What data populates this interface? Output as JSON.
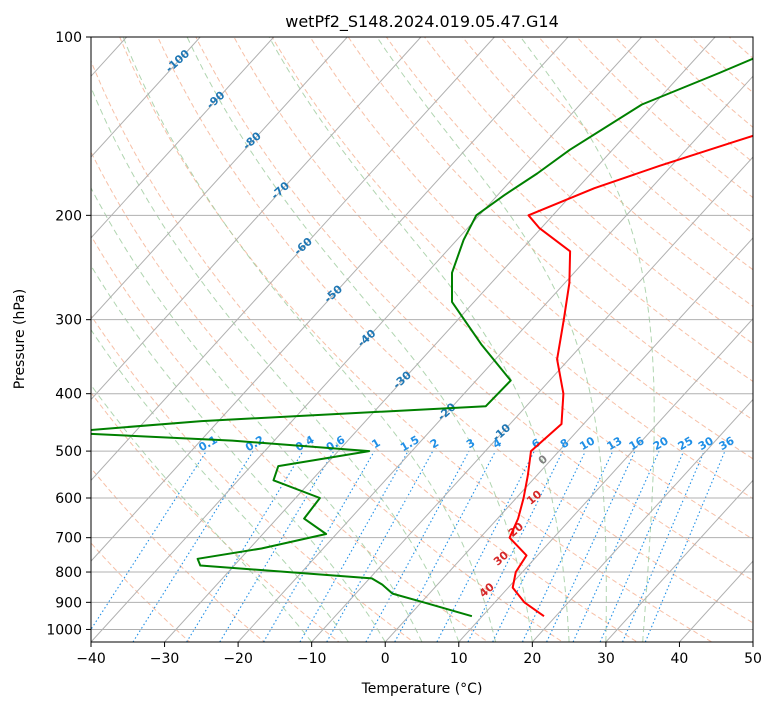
{
  "chart_data": {
    "type": "skew-t",
    "title": "wetPf2_S148.2024.019.05.47.G14",
    "xlabel": "Temperature (°C)",
    "ylabel": "Pressure (hPa)",
    "xlim": [
      -40,
      50
    ],
    "ylim": [
      1050,
      100
    ],
    "y_scale": "log",
    "x_ticks": [
      "−40",
      "−30",
      "−20",
      "−10",
      "0",
      "10",
      "20",
      "30",
      "40",
      "50"
    ],
    "y_ticks": [
      "100",
      "200",
      "300",
      "400",
      "500",
      "600",
      "700",
      "800",
      "900",
      "1000"
    ],
    "grid": true,
    "colors": {
      "temperature": "#ff0000",
      "dewpoint": "#008000",
      "isotherm": "#b0b0b0",
      "dry_adiabat": "#f4a582",
      "moist_adiabat": "#9ccb9c",
      "mixing_ratio": "#1f8fe6",
      "dry_adiabat_label": "#1f77b4",
      "mixing_ratio_label": "#1f8fe6",
      "moist_label": "#d62728"
    },
    "series": [
      {
        "role": "temperature",
        "points": [
          [
            100,
            0.3
          ],
          [
            110,
            -0.8
          ],
          [
            125,
            -2.9
          ],
          [
            135,
            -6.0
          ],
          [
            150,
            -14.3
          ],
          [
            165,
            -21.6
          ],
          [
            180,
            -27.7
          ],
          [
            200,
            -33.3
          ],
          [
            210,
            -30.3
          ],
          [
            230,
            -23.2
          ],
          [
            260,
            -19.4
          ],
          [
            300,
            -15.6
          ],
          [
            350,
            -11.6
          ],
          [
            400,
            -6.5
          ],
          [
            450,
            -3.0
          ],
          [
            500,
            -3.8
          ],
          [
            550,
            -1.2
          ],
          [
            600,
            1.0
          ],
          [
            650,
            2.8
          ],
          [
            700,
            4.0
          ],
          [
            750,
            8.5
          ],
          [
            800,
            9.1
          ],
          [
            850,
            10.6
          ],
          [
            900,
            14.0
          ],
          [
            950,
            18.4
          ]
        ]
      },
      {
        "role": "dewpoint",
        "points": [
          [
            100,
            -17.9
          ],
          [
            115,
            -25.0
          ],
          [
            130,
            -31.6
          ],
          [
            155,
            -35.8
          ],
          [
            170,
            -37.3
          ],
          [
            185,
            -39.1
          ],
          [
            200,
            -40.4
          ],
          [
            220,
            -39.1
          ],
          [
            250,
            -36.6
          ],
          [
            280,
            -33.0
          ],
          [
            330,
            -23.8
          ],
          [
            380,
            -15.3
          ],
          [
            420,
            -15.5
          ],
          [
            445,
            -52.3
          ],
          [
            465,
            -70.1
          ],
          [
            480,
            -45.7
          ],
          [
            500,
            -25.8
          ],
          [
            530,
            -36.3
          ],
          [
            560,
            -35.2
          ],
          [
            600,
            -26.7
          ],
          [
            650,
            -26.3
          ],
          [
            690,
            -21.4
          ],
          [
            730,
            -28.4
          ],
          [
            760,
            -35.8
          ],
          [
            780,
            -34.6
          ],
          [
            820,
            -9.7
          ],
          [
            840,
            -7.5
          ],
          [
            870,
            -5.0
          ],
          [
            900,
            0.3
          ],
          [
            950,
            8.6
          ]
        ]
      }
    ],
    "dry_adiabat_labels": [
      "-100",
      "-90",
      "-80",
      "-70",
      "-60",
      "-50",
      "-40",
      "-30",
      "-20",
      "-10"
    ],
    "mixing_ratio_labels": [
      "0.1",
      "0.2",
      "0.4",
      "0.6",
      "1",
      "1.5",
      "2",
      "3",
      "4",
      "6",
      "8",
      "10",
      "13",
      "16",
      "20",
      "25",
      "30",
      "36"
    ],
    "moist_adiabat_labels": [
      "0",
      "10",
      "20",
      "30",
      "40"
    ]
  }
}
